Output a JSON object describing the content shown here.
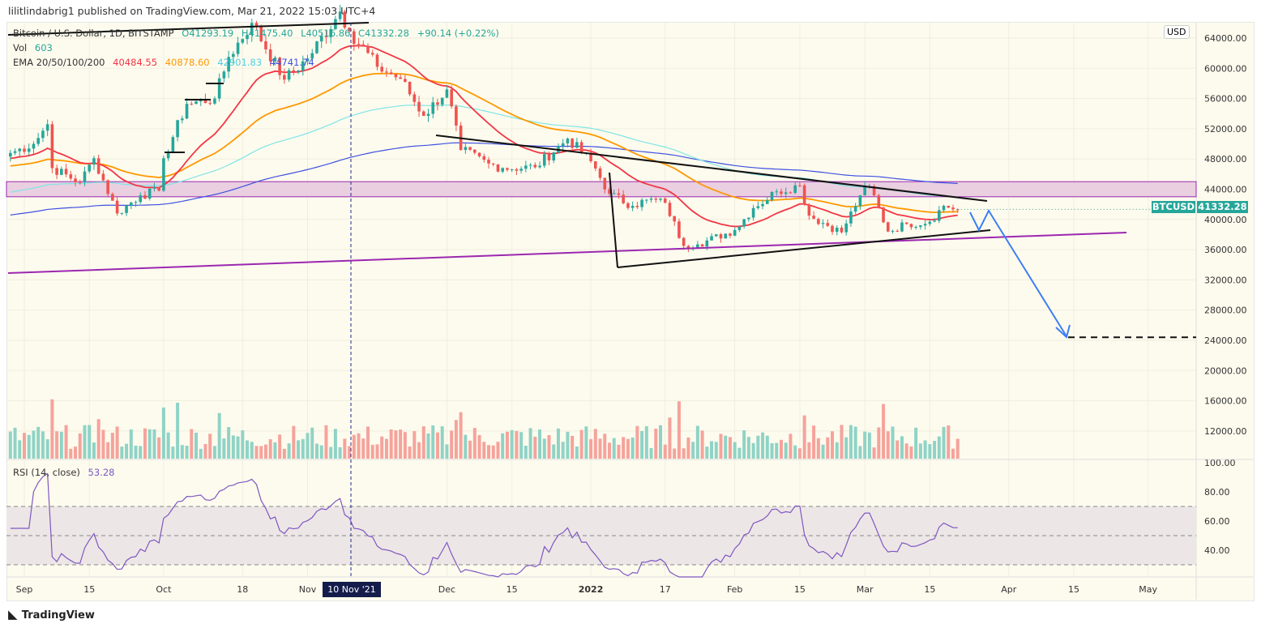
{
  "header": {
    "publisher": "lilitlindabrig1 published on TradingView.com, Mar 21, 2022 15:03 UTC+4"
  },
  "legend": {
    "symbol": "Bitcoin / U.S. Dollar, 1D, BITSTAMP",
    "open": "O41293.19",
    "high": "H41475.40",
    "low": "L40516.86",
    "close": "C41332.28",
    "change": "+90.14 (+0.22%)",
    "vol_label": "Vol",
    "vol_value": "603",
    "ema_label": "EMA 20/50/100/200",
    "ema20": "40484.55",
    "ema50": "40878.60",
    "ema100": "42901.83",
    "ema200": "44741.74",
    "rsi_label": "RSI (14, close)",
    "rsi_value": "53.28"
  },
  "price_tag": {
    "symbol": "BTCUSD",
    "price": "41332.28"
  },
  "currency": "USD",
  "crosshair_date": "10 Nov '21",
  "footer": {
    "brand": "TradingView"
  },
  "colors": {
    "up": "#26a69a",
    "down": "#ef5350",
    "ema20": "#f23645",
    "ema50": "#ff9800",
    "ema100": "#7fe5e5",
    "ema200": "#3f51e0",
    "rsi": "#7e57c2",
    "zone": "#9c27b0",
    "arrow": "#3d7ef5"
  },
  "chart_data": {
    "type": "candlestick",
    "price_axis": {
      "ticks": [
        64000,
        60000,
        56000,
        52000,
        48000,
        44000,
        40000,
        36000,
        32000,
        28000,
        24000,
        20000,
        16000,
        12000
      ],
      "labels": [
        "64000.00",
        "60000.00",
        "56000.00",
        "52000.00",
        "48000.00",
        "44000.00",
        "40000.00",
        "36000.00",
        "32000.00",
        "28000.00",
        "24000.00",
        "20000.00",
        "16000.00",
        "12000.00"
      ]
    },
    "rsi_axis": {
      "ticks": [
        100,
        80,
        60,
        40
      ],
      "labels": [
        "100.00",
        "80.00",
        "60.00",
        "40.00"
      ],
      "band": [
        30,
        70
      ]
    },
    "time_axis": [
      {
        "date": "2021-09-01",
        "label": "Sep"
      },
      {
        "date": "2021-09-15",
        "label": "15"
      },
      {
        "date": "2021-10-01",
        "label": "Oct"
      },
      {
        "date": "2021-10-18",
        "label": "18"
      },
      {
        "date": "2021-11-01",
        "label": "Nov"
      },
      {
        "date": "2021-12-01",
        "label": "Dec"
      },
      {
        "date": "2021-12-15",
        "label": "15"
      },
      {
        "date": "2022-01-01",
        "label": "2022"
      },
      {
        "date": "2022-01-17",
        "label": "17"
      },
      {
        "date": "2022-02-01",
        "label": "Feb"
      },
      {
        "date": "2022-02-15",
        "label": "15"
      },
      {
        "date": "2022-03-01",
        "label": "Mar"
      },
      {
        "date": "2022-03-15",
        "label": "15"
      },
      {
        "date": "2022-04-01",
        "label": "Apr"
      },
      {
        "date": "2022-04-15",
        "label": "15"
      },
      {
        "date": "2022-05-01",
        "label": "May"
      }
    ],
    "close_keypoints": [
      [
        "2021-08-29",
        48800
      ],
      [
        "2021-09-03",
        50000
      ],
      [
        "2021-09-06",
        52600
      ],
      [
        "2021-09-07",
        46800
      ],
      [
        "2021-09-13",
        44900
      ],
      [
        "2021-09-16",
        48100
      ],
      [
        "2021-09-21",
        40800
      ],
      [
        "2021-09-26",
        43200
      ],
      [
        "2021-09-30",
        43800
      ],
      [
        "2021-10-01",
        48100
      ],
      [
        "2021-10-06",
        55300
      ],
      [
        "2021-10-12",
        56000
      ],
      [
        "2021-10-15",
        61500
      ],
      [
        "2021-10-20",
        66000
      ],
      [
        "2021-10-27",
        58500
      ],
      [
        "2021-11-01",
        61300
      ],
      [
        "2021-11-08",
        67500
      ],
      [
        "2021-11-10",
        64900
      ],
      [
        "2021-11-16",
        60200
      ],
      [
        "2021-11-21",
        58600
      ],
      [
        "2021-11-26",
        53700
      ],
      [
        "2021-12-01",
        57200
      ],
      [
        "2021-12-04",
        49200
      ],
      [
        "2021-12-10",
        47400
      ],
      [
        "2021-12-13",
        46800
      ],
      [
        "2021-12-20",
        46900
      ],
      [
        "2021-12-27",
        50700
      ],
      [
        "2022-01-01",
        47700
      ],
      [
        "2022-01-05",
        43400
      ],
      [
        "2022-01-10",
        41800
      ],
      [
        "2022-01-13",
        42600
      ],
      [
        "2022-01-17",
        42200
      ],
      [
        "2022-01-21",
        36500
      ],
      [
        "2022-01-24",
        36700
      ],
      [
        "2022-02-01",
        38600
      ],
      [
        "2022-02-05",
        41500
      ],
      [
        "2022-02-10",
        43700
      ],
      [
        "2022-02-15",
        44500
      ],
      [
        "2022-02-17",
        40500
      ],
      [
        "2022-02-24",
        38300
      ],
      [
        "2022-02-28",
        43200
      ],
      [
        "2022-03-02",
        44400
      ],
      [
        "2022-03-06",
        38400
      ],
      [
        "2022-03-10",
        39400
      ],
      [
        "2022-03-15",
        39700
      ],
      [
        "2022-03-18",
        41800
      ],
      [
        "2022-03-21",
        41332
      ]
    ],
    "drawings": {
      "resistance_zone": [
        43000,
        45000
      ],
      "forecast_target": 24400
    }
  }
}
